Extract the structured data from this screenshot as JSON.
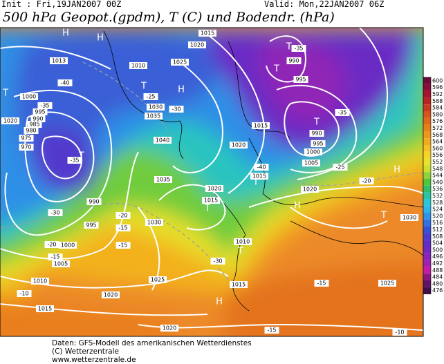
{
  "header": {
    "init": "Init : Fri,19JAN2007 00Z",
    "valid": "Valid: Mon,22JAN2007 06Z",
    "title": "500 hPa Geopot.(gpdm), T (C) und Bodendr. (hPa)"
  },
  "colorbar": {
    "levels": [
      600,
      596,
      592,
      588,
      584,
      580,
      576,
      572,
      568,
      564,
      560,
      556,
      552,
      548,
      544,
      540,
      536,
      532,
      528,
      524,
      520,
      516,
      512,
      508,
      504,
      500,
      496,
      492,
      488,
      484,
      480,
      476
    ],
    "colors": [
      "#6b0a3a",
      "#8a0c3a",
      "#a5132e",
      "#b92222",
      "#c83a1e",
      "#d5551c",
      "#e06a1c",
      "#e8801a",
      "#ef961b",
      "#f3ab1e",
      "#f6c023",
      "#f5d42a",
      "#e8e22c",
      "#c9e02c",
      "#8fd33a",
      "#4ec63f",
      "#2fbf6a",
      "#27c4a5",
      "#2ac8d6",
      "#2eb4ec",
      "#2f93e8",
      "#3070e0",
      "#3552d6",
      "#4a3ccc",
      "#5e2fc6",
      "#7328c0",
      "#8a24b8",
      "#a020b0",
      "#c21ca8",
      "#8a1880",
      "#5e1466",
      "#40104a"
    ]
  },
  "map_labels": [
    "H",
    "H",
    "1015",
    "1020",
    "1013",
    "1010",
    "1025",
    "T",
    "T",
    "990",
    "995",
    "-35",
    "H",
    "T",
    "-25",
    "1030",
    "1035",
    "-30",
    "T",
    "-40",
    "1000",
    "-35",
    "995",
    "990",
    "985",
    "980",
    "975",
    "970",
    "T",
    "-35",
    "990",
    "995",
    "1000",
    "1005",
    "1010",
    "1015",
    "-10",
    "-20",
    "-30",
    "1020",
    "T",
    "990",
    "995",
    "1000",
    "1005",
    "-35",
    "-25",
    "1015",
    "1020",
    "1040",
    "1035",
    "1020",
    "1015",
    "T",
    "1015",
    "-40",
    "T",
    "1020",
    "-20",
    "H",
    "H",
    "T",
    "1030",
    "1025",
    "1030",
    "-15",
    "-15",
    "-15",
    "1025",
    "1010",
    "T",
    "-30",
    "1015",
    "H",
    "1020",
    "1020",
    "-15",
    "-10",
    "-20",
    "-15"
  ],
  "footer": [
    "Daten: GFS-Modell des amerikanischen Wetterdienstes",
    "(C) Wetterzentrale",
    "www.wetterzentrale.de"
  ]
}
